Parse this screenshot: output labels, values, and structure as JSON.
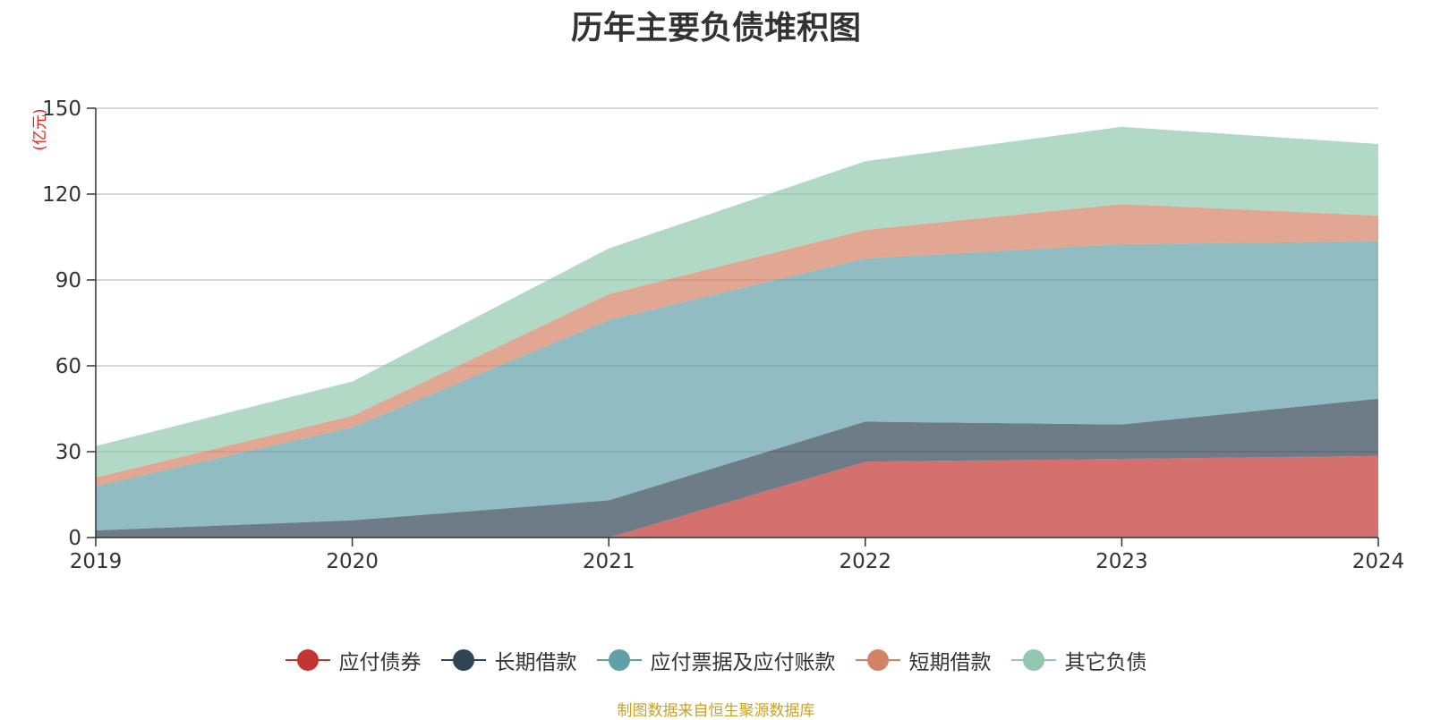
{
  "chart_data": {
    "type": "area",
    "stacked": true,
    "title": "历年主要负债堆积图",
    "ylabel": "(亿元)",
    "xlabel": "",
    "ylim": [
      0,
      150
    ],
    "yticks": [
      0,
      30,
      60,
      90,
      120,
      150
    ],
    "categories": [
      "2019",
      "2020",
      "2021",
      "2022",
      "2023",
      "2024"
    ],
    "series": [
      {
        "name": "应付债券",
        "color": "#c23531",
        "values": [
          0,
          0,
          0,
          26.5,
          27.5,
          28.5
        ]
      },
      {
        "name": "长期借款",
        "color": "#2f4554",
        "values": [
          2.5,
          6,
          13,
          14,
          12,
          20
        ]
      },
      {
        "name": "应付票据及应付账款",
        "color": "#61a0a8",
        "values": [
          15.5,
          32.5,
          63,
          57,
          63,
          55
        ]
      },
      {
        "name": "短期借款",
        "color": "#d48265",
        "values": [
          3,
          4,
          9,
          10,
          14,
          9
        ]
      },
      {
        "name": "其它负债",
        "color": "#91c7ae",
        "values": [
          11,
          12,
          16,
          24,
          27,
          25
        ]
      }
    ],
    "legend_position": "bottom-center",
    "grid": true,
    "source": "制图数据来自恒生聚源数据库"
  }
}
